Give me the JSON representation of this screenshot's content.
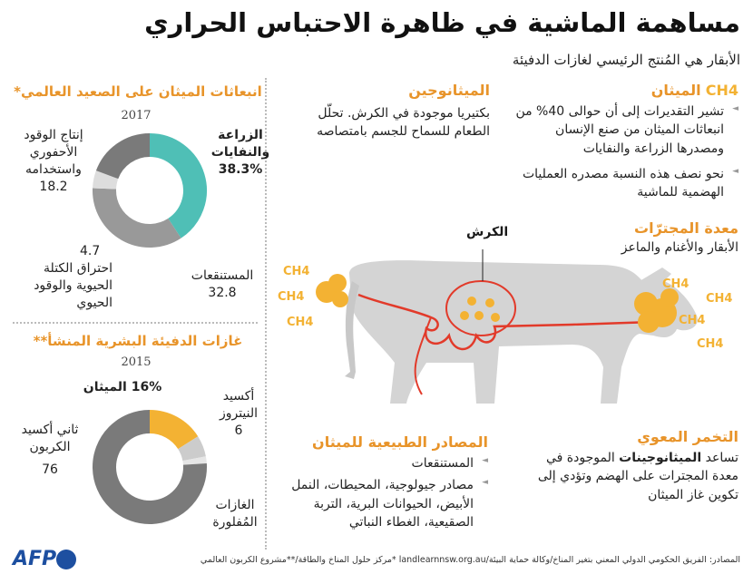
{
  "title": "مساهمة الماشية في ظاهرة الاحتباس الحراري",
  "subtitle": "الأبقار هي المُنتج الرئيسي لغازات الدفيئة",
  "methane": {
    "title": "الميثان",
    "formula": "CH4",
    "bullets": [
      "تشير التقديرات إلى أن حوالى 40% من انبعاثات الميثان من صنع الإنسان ومصدرها الزراعة والنفايات",
      "نحو نصف هذه النسبة مصدره العمليات الهضمية للماشية"
    ]
  },
  "methanogens": {
    "title": "الميثانوجين",
    "text": "بكتيريا موجودة في الكرش. تحلّل الطعام للسماح للجسم بامتصاصه"
  },
  "ruminant": {
    "title": "معدة المجترّات",
    "text": "الأبقار والأغنام والماعز"
  },
  "rumen_label": "الكرش",
  "ch4_label": "CH4",
  "donut1": {
    "title": "انبعاثات الميثان على الصعيد العالمي*",
    "year": "2017",
    "segments": [
      {
        "label": "الزراعة والنفايات",
        "value": "38.3%",
        "pct": 38.3,
        "color": "#4fbfb6"
      },
      {
        "label": "المستنقعات",
        "value": "32.8",
        "pct": 32.8,
        "color": "#999999"
      },
      {
        "label": "احتراق الكتلة الحيوية والوقود الحيوي",
        "value": "4.7",
        "pct": 4.7,
        "color": "#dddddd"
      },
      {
        "label": "إنتاج الوقود الأحفوري واستخدامه",
        "value": "18.2",
        "pct": 18.2,
        "color": "#7a7a7a"
      }
    ],
    "gap_color": "#cfcfcf"
  },
  "donut2": {
    "title": "غازات الدفيئة البشرية المنشأ**",
    "year": "2015",
    "segments": [
      {
        "label": "الميثان",
        "value": "16%",
        "pct": 16,
        "color": "#f3b233"
      },
      {
        "label": "أكسيد النيتروز",
        "value": "6",
        "pct": 6,
        "color": "#cccccc"
      },
      {
        "label": "الغازات المُفلورة",
        "value": "",
        "pct": 2,
        "color": "#e6e6e6"
      },
      {
        "label": "ثاني أكسيد الكربون",
        "value": "76",
        "pct": 76,
        "color": "#7a7a7a"
      }
    ]
  },
  "natural": {
    "title": "المصادر الطبيعية للميثان",
    "bullets": [
      "المستنقعات",
      "مصادر جيولوجية، المحيطات، النمل الأبيض، الحيوانات البرية، التربة الصقيعية، الغطاء النباتي"
    ]
  },
  "fermentation": {
    "title": "التخمر المعوي",
    "text_pre": "تساعد ",
    "text_bold": "الميثانوجينات",
    "text_post": " الموجودة في معدة المجترات على الهضم وتؤدي إلى تكوين غاز الميثان"
  },
  "footer": "المصادر: الفريق الحكومي الدولي المعني بتغير المناخ/وكالة حماية البيئة/landlearnnsw.org.au *مركز حلول المناخ والطاقة/**مشروع الكربون العالمي",
  "logo": "AFP",
  "colors": {
    "orange": "#e8942a",
    "teal": "#4fbfb6",
    "yellow": "#f3b233",
    "cow": "#d4d4d4",
    "red": "#e23a2a"
  }
}
